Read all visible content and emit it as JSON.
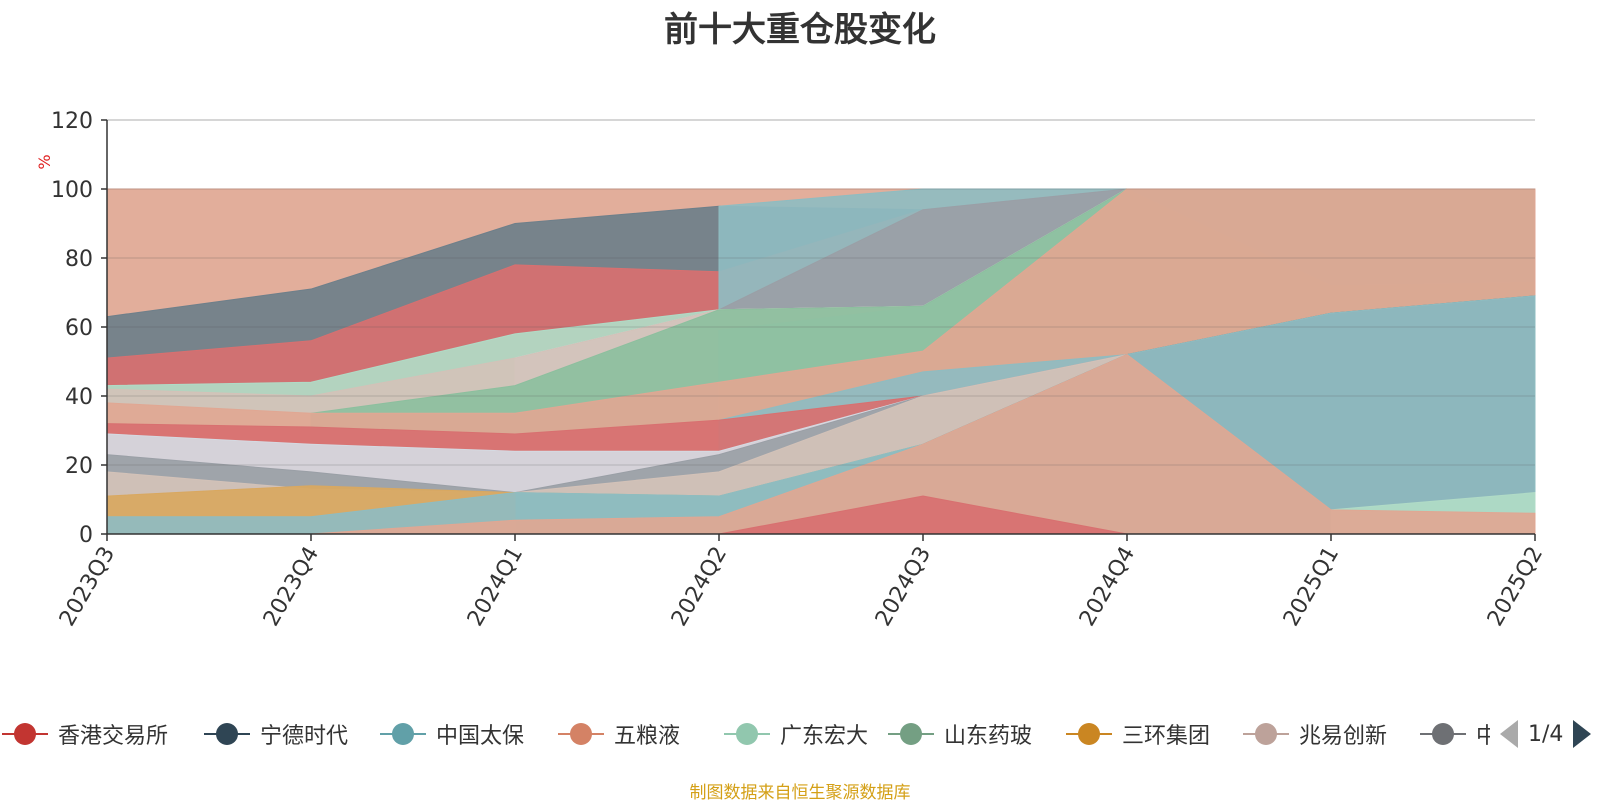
{
  "title": "前十大重仓股变化",
  "source_note": "制图数据来自恒生聚源数据库",
  "pager": {
    "text": "1/4"
  },
  "chart_data": {
    "type": "area",
    "stacked": false,
    "title": "前十大重仓股变化",
    "ylabel": "%",
    "xlabel": "",
    "ylim": [
      0,
      120
    ],
    "yticks": [
      0,
      20,
      40,
      60,
      80,
      100,
      120
    ],
    "grid": true,
    "legend_position": "bottom",
    "categories": [
      "2023Q3",
      "2023Q4",
      "2024Q1",
      "2024Q2",
      "2024Q3",
      "2024Q4",
      "2025Q1",
      "2025Q2"
    ],
    "series": [
      {
        "name": "五粮液",
        "color": "#e0a793",
        "values": [
          100,
          100,
          100,
          100,
          100,
          100,
          100,
          100
        ]
      },
      {
        "name": "宁德时代",
        "color": "#6e7f8a",
        "values": [
          63,
          71,
          90,
          95,
          94,
          100,
          72,
          73
        ]
      },
      {
        "name": "香港交易所",
        "color": "#d87070",
        "values": [
          51,
          56,
          78,
          76,
          94,
          100,
          100,
          100
        ]
      },
      {
        "name": "三环集团",
        "color": "#d9a860",
        "values": [
          null,
          null,
          null,
          null,
          null,
          100,
          72,
          69
        ]
      },
      {
        "name": "中国太保",
        "color": "#8fbcc1",
        "values": [
          null,
          null,
          null,
          95,
          100,
          100,
          100,
          100
        ]
      },
      {
        "name": "兆易创新",
        "color": "#9a9fa6",
        "values": [
          null,
          null,
          null,
          65,
          94,
          100,
          100,
          100
        ]
      },
      {
        "name": "广东宏大",
        "color": "#b0dbc6",
        "values": [
          43,
          44,
          58,
          65,
          66,
          100,
          100,
          100
        ]
      },
      {
        "name": "中国太保",
        "color": "#d5dae2",
        "values": [
          null,
          null,
          51,
          65,
          66,
          100,
          100,
          100
        ]
      },
      {
        "name": "兆易创新",
        "color": "#d3c2b8",
        "values": [
          42,
          40,
          51,
          65,
          66,
          100,
          100,
          100
        ]
      },
      {
        "name": "广东宏大",
        "color": "#b0dbc6",
        "values": [
          null,
          null,
          null,
          59,
          66,
          100,
          100,
          100
        ]
      },
      {
        "name": "五粮液",
        "color": "#e0a793",
        "values": [
          null,
          null,
          null,
          44,
          53,
          100,
          72,
          73
        ]
      },
      {
        "name": "山东药玻",
        "color": "#8cbf9e",
        "values": [
          null,
          35,
          43,
          65,
          66,
          100,
          100,
          100
        ]
      },
      {
        "name": "宁德时代",
        "color": "#6e7f8a",
        "values": [
          null,
          null,
          null,
          null,
          null,
          52,
          64,
          69
        ]
      },
      {
        "name": "五粮液",
        "color": "#e0a793",
        "values": [
          38,
          35,
          35,
          44,
          53,
          100,
          100,
          100
        ]
      },
      {
        "name": "中国太保",
        "color": "#8fbcc1",
        "values": [
          null,
          null,
          null,
          33,
          47,
          52,
          64,
          69
        ]
      },
      {
        "name": "香港交易所",
        "color": "#d87070",
        "values": [
          32,
          31,
          29,
          33,
          40,
          52,
          64,
          69
        ]
      },
      {
        "name": "中国太保",
        "color": "#d5dae2",
        "values": [
          29,
          26,
          24,
          24,
          40,
          52,
          64,
          69
        ]
      },
      {
        "name": "兆易创新",
        "color": "#9a9fa6",
        "values": [
          23,
          18,
          12,
          23,
          40,
          52,
          64,
          69
        ]
      },
      {
        "name": "兆易创新",
        "color": "#d3c2b8",
        "values": [
          18,
          13,
          12,
          18,
          40,
          52,
          64,
          69
        ]
      },
      {
        "name": "山东药玻",
        "color": "#8cbf9e",
        "values": [
          null,
          null,
          12,
          11,
          26,
          52,
          64,
          69
        ]
      },
      {
        "name": "三环集团",
        "color": "#d9a860",
        "values": [
          11,
          14,
          12,
          null,
          null,
          null,
          null,
          null
        ]
      },
      {
        "name": "宁德时代",
        "color": "#6e7f8a",
        "values": [
          null,
          null,
          null,
          0,
          26,
          52,
          64,
          69
        ]
      },
      {
        "name": "中国太保",
        "color": "#8fbcc1",
        "values": [
          5,
          5,
          12,
          11,
          26,
          52,
          64,
          69
        ]
      },
      {
        "name": "广东宏大",
        "color": "#b0dbc6",
        "values": [
          null,
          null,
          null,
          null,
          null,
          null,
          7,
          12
        ]
      },
      {
        "name": "五粮液",
        "color": "#e0a793",
        "values": [
          null,
          0,
          4,
          5,
          26,
          52,
          7,
          6
        ]
      },
      {
        "name": "香港交易所",
        "color": "#d87070",
        "values": [
          null,
          null,
          null,
          0,
          11,
          0,
          null,
          null
        ]
      }
    ],
    "legend": [
      {
        "name": "香港交易所",
        "color": "#c23531"
      },
      {
        "name": "宁德时代",
        "color": "#2f4554"
      },
      {
        "name": "中国太保",
        "color": "#61a0a8"
      },
      {
        "name": "五粮液",
        "color": "#d48265"
      },
      {
        "name": "广东宏大",
        "color": "#91c7ae"
      },
      {
        "name": "山东药玻",
        "color": "#749f83"
      },
      {
        "name": "三环集团",
        "color": "#ca8622"
      },
      {
        "name": "兆易创新",
        "color": "#bda29a"
      },
      {
        "name": "中",
        "color": "#6e7074"
      }
    ]
  }
}
